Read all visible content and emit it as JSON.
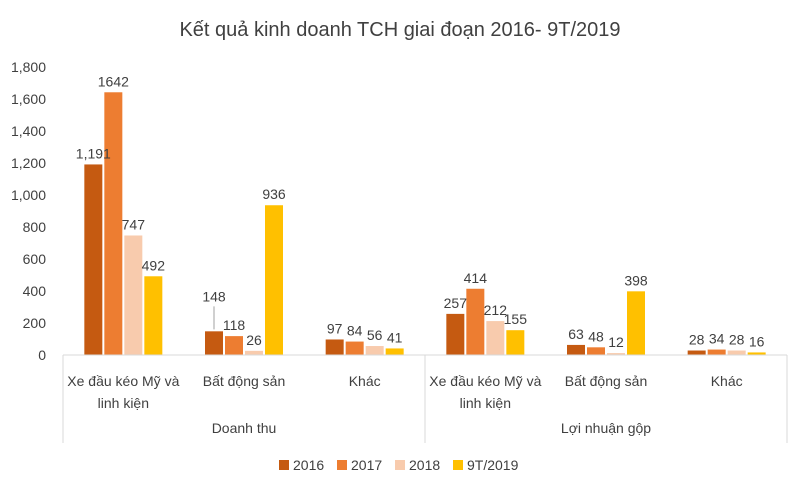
{
  "chart_data": {
    "type": "bar",
    "title": "Kết quả kinh doanh TCH giai đoạn 2016- 9T/2019",
    "xlabel": "",
    "ylabel": "",
    "ylim": [
      0,
      1800
    ],
    "yticks": [
      0,
      200,
      400,
      600,
      800,
      1000,
      1200,
      1400,
      1600,
      1800
    ],
    "ytick_labels": [
      "0",
      "200",
      "400",
      "600",
      "800",
      "1,000",
      "1,200",
      "1,400",
      "1,600",
      "1,800"
    ],
    "grid": false,
    "legend_position": "bottom",
    "groups": [
      {
        "name": "Doanh thu",
        "categories": [
          "Xe đầu kéo Mỹ và linh kiện",
          "Bất động sản",
          "Khác"
        ],
        "category_lines": [
          [
            "Xe đầu kéo Mỹ và",
            "linh kiện"
          ],
          [
            "Bất động sản"
          ],
          [
            "Khác"
          ]
        ]
      },
      {
        "name": "Lợi nhuận gộp",
        "categories": [
          "Xe đầu kéo Mỹ và linh kiện",
          "Bất động sản",
          "Khác"
        ],
        "category_lines": [
          [
            "Xe đầu kéo Mỹ và",
            "linh kiện"
          ],
          [
            "Bất động sản"
          ],
          [
            "Khác"
          ]
        ]
      }
    ],
    "series": [
      {
        "name": "2016",
        "color": "#C55A11",
        "values": [
          1191,
          148,
          97,
          257,
          63,
          28
        ],
        "labels": [
          "1,191",
          "148",
          "97",
          "257",
          "63",
          "28"
        ]
      },
      {
        "name": "2017",
        "color": "#ED7D31",
        "values": [
          1642,
          118,
          84,
          414,
          48,
          34
        ],
        "labels": [
          "1642",
          "118",
          "84",
          "414",
          "48",
          "34"
        ]
      },
      {
        "name": "2018",
        "color": "#F8CBAD",
        "values": [
          747,
          26,
          56,
          212,
          12,
          28
        ],
        "labels": [
          "747",
          "26",
          "56",
          "212",
          "12",
          "28"
        ]
      },
      {
        "name": "9T/2019",
        "color": "#FFC000",
        "values": [
          492,
          936,
          41,
          155,
          398,
          16
        ],
        "labels": [
          "492",
          "936",
          "41",
          "155",
          "398",
          "16"
        ]
      }
    ]
  }
}
